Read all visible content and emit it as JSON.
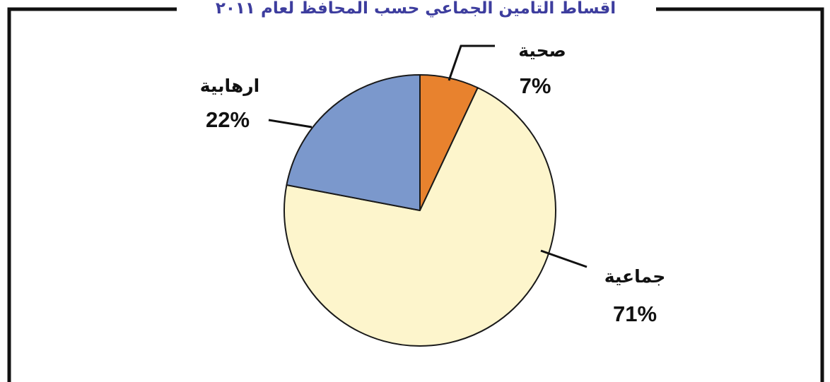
{
  "chart_data": {
    "type": "pie",
    "title": "اقساط التامين الجماعي حسب المحافظ لعام ٢٠١١",
    "start_angle_deg": 0,
    "direction": "clockwise",
    "slices": [
      {
        "label": "صحية",
        "value": 7,
        "display": "7%",
        "color": "#e8822e"
      },
      {
        "label": "جماعية",
        "value": 71,
        "display": "71%",
        "color": "#fdf5cc"
      },
      {
        "label": "ارهابية",
        "value": 22,
        "display": "22%",
        "color": "#7b98cc"
      }
    ],
    "legend": "none",
    "frame_color": "#111111",
    "outline_color": "#1a1a1a"
  }
}
